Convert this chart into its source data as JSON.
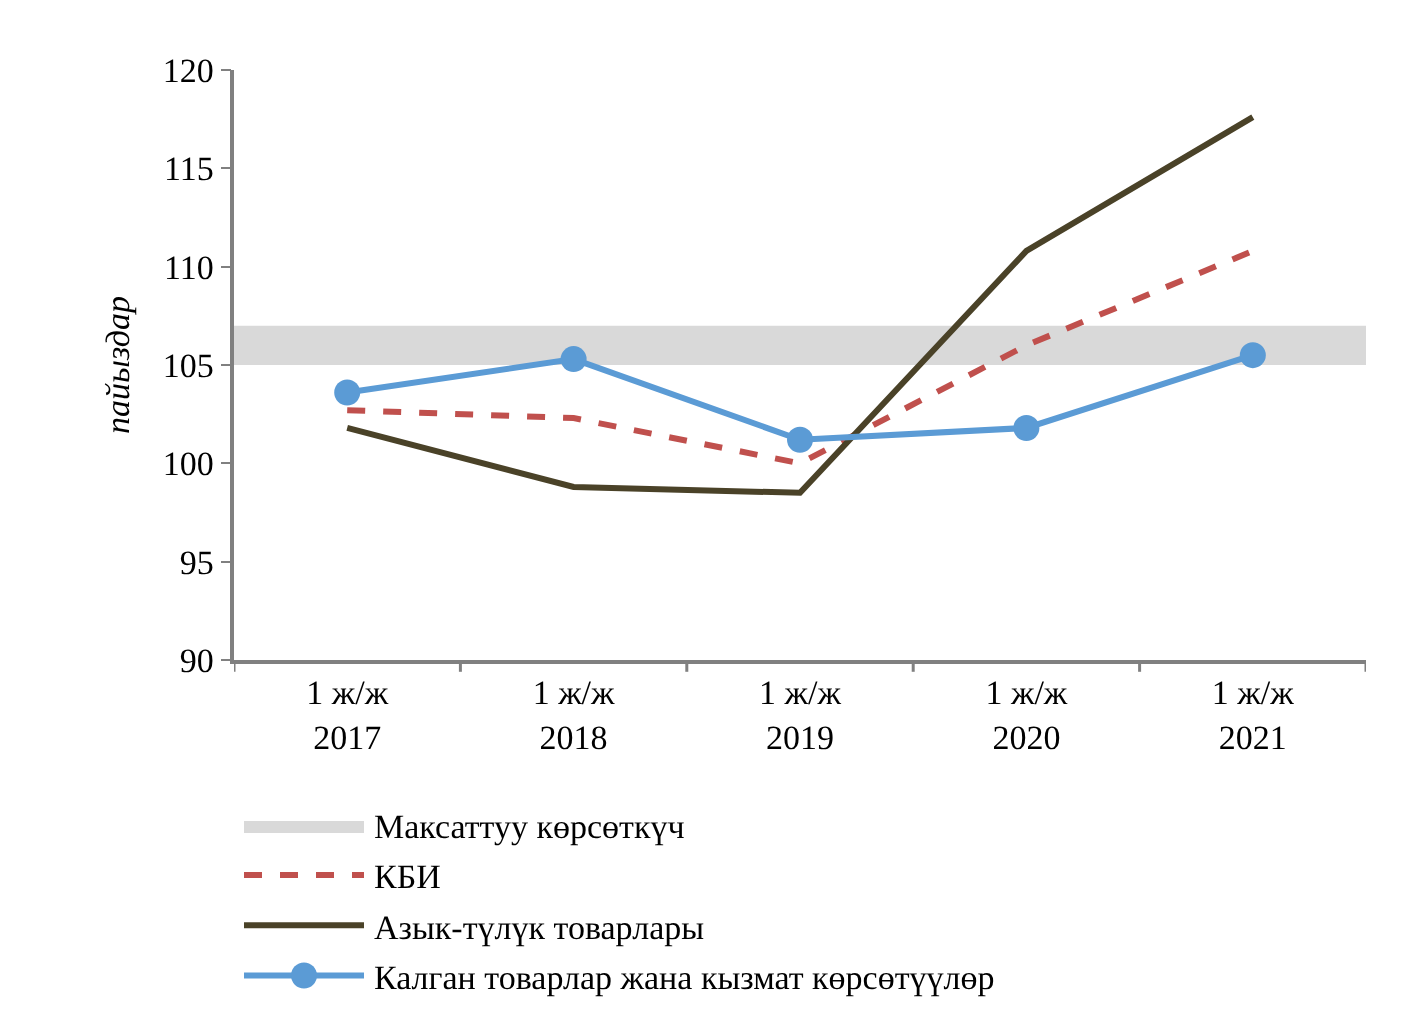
{
  "chart_data": {
    "type": "line",
    "ylabel": "пайыздар",
    "categories": [
      "1 ж/ж\n2017",
      "1 ж/ж\n2018",
      "1 ж/ж\n2019",
      "1 ж/ж\n2020",
      "1 ж/ж\n2021"
    ],
    "series": [
      {
        "name": "КБИ",
        "color": "#c0504d",
        "line_style": "dashed",
        "marker": "none",
        "values": [
          102.7,
          102.3,
          100.0,
          106.0,
          110.8
        ]
      },
      {
        "name": "Азык-түлүк товарлары",
        "color": "#4a4228",
        "line_style": "solid",
        "marker": "none",
        "values": [
          101.8,
          98.8,
          98.5,
          110.8,
          117.6
        ]
      },
      {
        "name": "Калган товарлар жана кызмат көрсөтүүлөр",
        "color": "#5b9bd5",
        "line_style": "solid",
        "marker": "circle",
        "values": [
          103.6,
          105.3,
          101.2,
          101.8,
          105.5
        ]
      }
    ],
    "bands": [
      {
        "axis": "y",
        "from": 105,
        "to": 107,
        "label": "Максаттуу көрсөткүч",
        "color": "#d9d9d9"
      }
    ],
    "ylim": [
      90,
      120
    ],
    "yticks": [
      90,
      95,
      100,
      105,
      110,
      115,
      120
    ],
    "grid": false,
    "legend": "bottom"
  }
}
